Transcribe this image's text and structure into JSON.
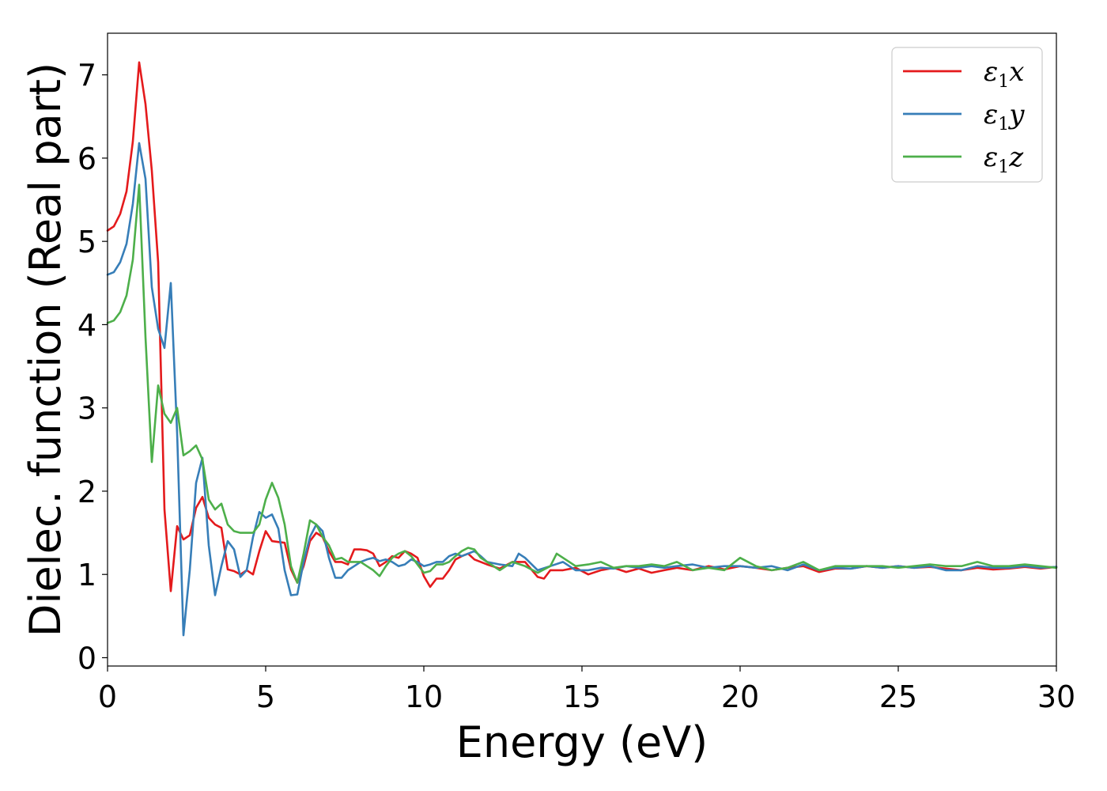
{
  "chart_data": {
    "type": "line",
    "xlabel": "Energy (eV)",
    "ylabel": "Dielec. function (Real part)",
    "xlim": [
      0,
      30
    ],
    "ylim": [
      -0.1,
      7.5
    ],
    "xticks": [
      "0",
      "5",
      "10",
      "15",
      "20",
      "25",
      "30"
    ],
    "yticks": [
      "0",
      "1",
      "2",
      "3",
      "4",
      "5",
      "6",
      "7"
    ],
    "grid": false,
    "legend_position": "top-right",
    "series": [
      {
        "name": "ε₁x",
        "legend_main": "ε",
        "legend_sub": "1",
        "legend_suffix": "x",
        "color": "#e41a1c",
        "x": [
          0,
          0.2,
          0.4,
          0.6,
          0.8,
          1.0,
          1.2,
          1.4,
          1.6,
          1.8,
          2.0,
          2.2,
          2.4,
          2.6,
          2.8,
          3.0,
          3.2,
          3.4,
          3.6,
          3.8,
          4.0,
          4.2,
          4.4,
          4.6,
          4.8,
          5.0,
          5.2,
          5.4,
          5.6,
          5.8,
          6.0,
          6.2,
          6.4,
          6.6,
          6.8,
          7.0,
          7.2,
          7.4,
          7.6,
          7.8,
          8.0,
          8.2,
          8.4,
          8.6,
          8.8,
          9.0,
          9.2,
          9.4,
          9.6,
          9.8,
          10.0,
          10.2,
          10.4,
          10.6,
          10.8,
          11.0,
          11.2,
          11.4,
          11.6,
          11.8,
          12.0,
          12.4,
          12.8,
          13.2,
          13.6,
          13.8,
          14.0,
          14.4,
          14.8,
          15.2,
          15.6,
          16.0,
          16.4,
          16.8,
          17.2,
          17.6,
          18.0,
          18.5,
          19.0,
          19.5,
          20.0,
          20.5,
          21.0,
          21.5,
          22.0,
          22.5,
          23.0,
          23.5,
          24.0,
          24.5,
          25.0,
          25.5,
          26.0,
          26.5,
          27.0,
          27.5,
          28.0,
          28.5,
          29.0,
          29.5,
          30.0
        ],
        "values": [
          5.13,
          5.18,
          5.33,
          5.6,
          6.2,
          7.15,
          6.65,
          5.85,
          4.75,
          1.78,
          0.8,
          1.58,
          1.42,
          1.47,
          1.8,
          1.93,
          1.68,
          1.6,
          1.56,
          1.06,
          1.04,
          1.0,
          1.05,
          1.0,
          1.28,
          1.52,
          1.4,
          1.39,
          1.38,
          1.06,
          0.9,
          1.1,
          1.4,
          1.5,
          1.45,
          1.28,
          1.15,
          1.15,
          1.12,
          1.3,
          1.3,
          1.29,
          1.25,
          1.1,
          1.15,
          1.22,
          1.2,
          1.28,
          1.25,
          1.2,
          0.98,
          0.85,
          0.95,
          0.95,
          1.05,
          1.18,
          1.22,
          1.25,
          1.18,
          1.15,
          1.12,
          1.07,
          1.15,
          1.15,
          0.97,
          0.95,
          1.05,
          1.05,
          1.08,
          1.0,
          1.05,
          1.08,
          1.03,
          1.07,
          1.02,
          1.05,
          1.08,
          1.05,
          1.1,
          1.06,
          1.1,
          1.08,
          1.05,
          1.08,
          1.1,
          1.03,
          1.07,
          1.07,
          1.1,
          1.08,
          1.1,
          1.08,
          1.09,
          1.07,
          1.05,
          1.08,
          1.06,
          1.07,
          1.09,
          1.07,
          1.09
        ]
      },
      {
        "name": "ε₁y",
        "legend_main": "ε",
        "legend_sub": "1",
        "legend_suffix": "y",
        "color": "#377eb8",
        "x": [
          0,
          0.2,
          0.4,
          0.6,
          0.8,
          1.0,
          1.2,
          1.4,
          1.6,
          1.8,
          2.0,
          2.2,
          2.4,
          2.6,
          2.8,
          3.0,
          3.2,
          3.4,
          3.6,
          3.8,
          4.0,
          4.2,
          4.4,
          4.6,
          4.8,
          5.0,
          5.2,
          5.4,
          5.6,
          5.8,
          6.0,
          6.2,
          6.4,
          6.6,
          6.8,
          7.0,
          7.2,
          7.4,
          7.6,
          7.8,
          8.0,
          8.2,
          8.4,
          8.6,
          8.8,
          9.0,
          9.2,
          9.4,
          9.6,
          9.8,
          10.0,
          10.2,
          10.4,
          10.6,
          10.8,
          11.0,
          11.2,
          11.4,
          11.6,
          11.8,
          12.0,
          12.4,
          12.8,
          13.0,
          13.2,
          13.6,
          14.0,
          14.4,
          14.8,
          15.2,
          15.6,
          16.0,
          16.4,
          16.8,
          17.2,
          17.6,
          18.0,
          18.5,
          19.0,
          19.5,
          20.0,
          20.5,
          21.0,
          21.5,
          22.0,
          22.5,
          23.0,
          23.5,
          24.0,
          24.5,
          25.0,
          25.5,
          26.0,
          26.5,
          27.0,
          27.5,
          28.0,
          28.5,
          29.0,
          29.5,
          30.0
        ],
        "values": [
          4.6,
          4.63,
          4.75,
          4.97,
          5.45,
          6.18,
          5.75,
          4.45,
          3.95,
          3.72,
          4.5,
          2.7,
          0.27,
          1.05,
          2.1,
          2.4,
          1.35,
          0.75,
          1.1,
          1.4,
          1.3,
          0.97,
          1.05,
          1.45,
          1.75,
          1.68,
          1.72,
          1.55,
          1.05,
          0.75,
          0.76,
          1.15,
          1.45,
          1.6,
          1.52,
          1.2,
          0.96,
          0.96,
          1.05,
          1.1,
          1.15,
          1.18,
          1.2,
          1.16,
          1.18,
          1.15,
          1.1,
          1.12,
          1.18,
          1.15,
          1.1,
          1.12,
          1.15,
          1.15,
          1.22,
          1.25,
          1.22,
          1.25,
          1.28,
          1.22,
          1.15,
          1.12,
          1.1,
          1.25,
          1.2,
          1.05,
          1.1,
          1.15,
          1.05,
          1.05,
          1.08,
          1.07,
          1.1,
          1.08,
          1.1,
          1.08,
          1.1,
          1.12,
          1.08,
          1.1,
          1.1,
          1.08,
          1.1,
          1.05,
          1.12,
          1.05,
          1.08,
          1.07,
          1.1,
          1.08,
          1.1,
          1.08,
          1.1,
          1.05,
          1.05,
          1.1,
          1.08,
          1.08,
          1.1,
          1.08,
          1.09
        ]
      },
      {
        "name": "ε₁z",
        "legend_main": "ε",
        "legend_sub": "1",
        "legend_suffix": "z",
        "color": "#4daf4a",
        "x": [
          0,
          0.2,
          0.4,
          0.6,
          0.8,
          1.0,
          1.2,
          1.4,
          1.6,
          1.8,
          2.0,
          2.2,
          2.4,
          2.6,
          2.8,
          3.0,
          3.2,
          3.4,
          3.6,
          3.8,
          4.0,
          4.2,
          4.4,
          4.6,
          4.8,
          5.0,
          5.2,
          5.4,
          5.6,
          5.8,
          6.0,
          6.2,
          6.4,
          6.6,
          6.8,
          7.0,
          7.2,
          7.4,
          7.6,
          7.8,
          8.0,
          8.2,
          8.4,
          8.6,
          8.8,
          9.0,
          9.2,
          9.4,
          9.6,
          9.8,
          10.0,
          10.2,
          10.4,
          10.6,
          10.8,
          11.0,
          11.2,
          11.4,
          11.6,
          11.8,
          12.0,
          12.4,
          12.8,
          13.2,
          13.6,
          14.0,
          14.2,
          14.4,
          14.8,
          15.2,
          15.6,
          16.0,
          16.4,
          16.8,
          17.2,
          17.6,
          18.0,
          18.5,
          19.0,
          19.5,
          20.0,
          20.5,
          21.0,
          21.5,
          22.0,
          22.5,
          23.0,
          23.5,
          24.0,
          24.5,
          25.0,
          25.5,
          26.0,
          26.5,
          27.0,
          27.5,
          28.0,
          28.5,
          29.0,
          29.5,
          30.0
        ],
        "values": [
          4.02,
          4.05,
          4.15,
          4.35,
          4.78,
          5.68,
          3.85,
          2.35,
          3.27,
          2.93,
          2.82,
          3.0,
          2.43,
          2.48,
          2.55,
          2.38,
          1.9,
          1.78,
          1.85,
          1.6,
          1.52,
          1.5,
          1.5,
          1.5,
          1.6,
          1.9,
          2.1,
          1.92,
          1.6,
          1.1,
          0.9,
          1.25,
          1.65,
          1.6,
          1.45,
          1.35,
          1.18,
          1.2,
          1.15,
          1.15,
          1.15,
          1.1,
          1.05,
          0.98,
          1.1,
          1.2,
          1.25,
          1.28,
          1.22,
          1.12,
          1.02,
          1.04,
          1.12,
          1.12,
          1.15,
          1.22,
          1.28,
          1.32,
          1.3,
          1.2,
          1.15,
          1.05,
          1.15,
          1.1,
          1.02,
          1.1,
          1.25,
          1.2,
          1.1,
          1.12,
          1.15,
          1.08,
          1.1,
          1.1,
          1.12,
          1.1,
          1.15,
          1.05,
          1.08,
          1.05,
          1.2,
          1.1,
          1.05,
          1.08,
          1.15,
          1.05,
          1.1,
          1.1,
          1.1,
          1.1,
          1.08,
          1.1,
          1.12,
          1.1,
          1.1,
          1.15,
          1.1,
          1.1,
          1.12,
          1.1,
          1.08
        ]
      }
    ]
  }
}
